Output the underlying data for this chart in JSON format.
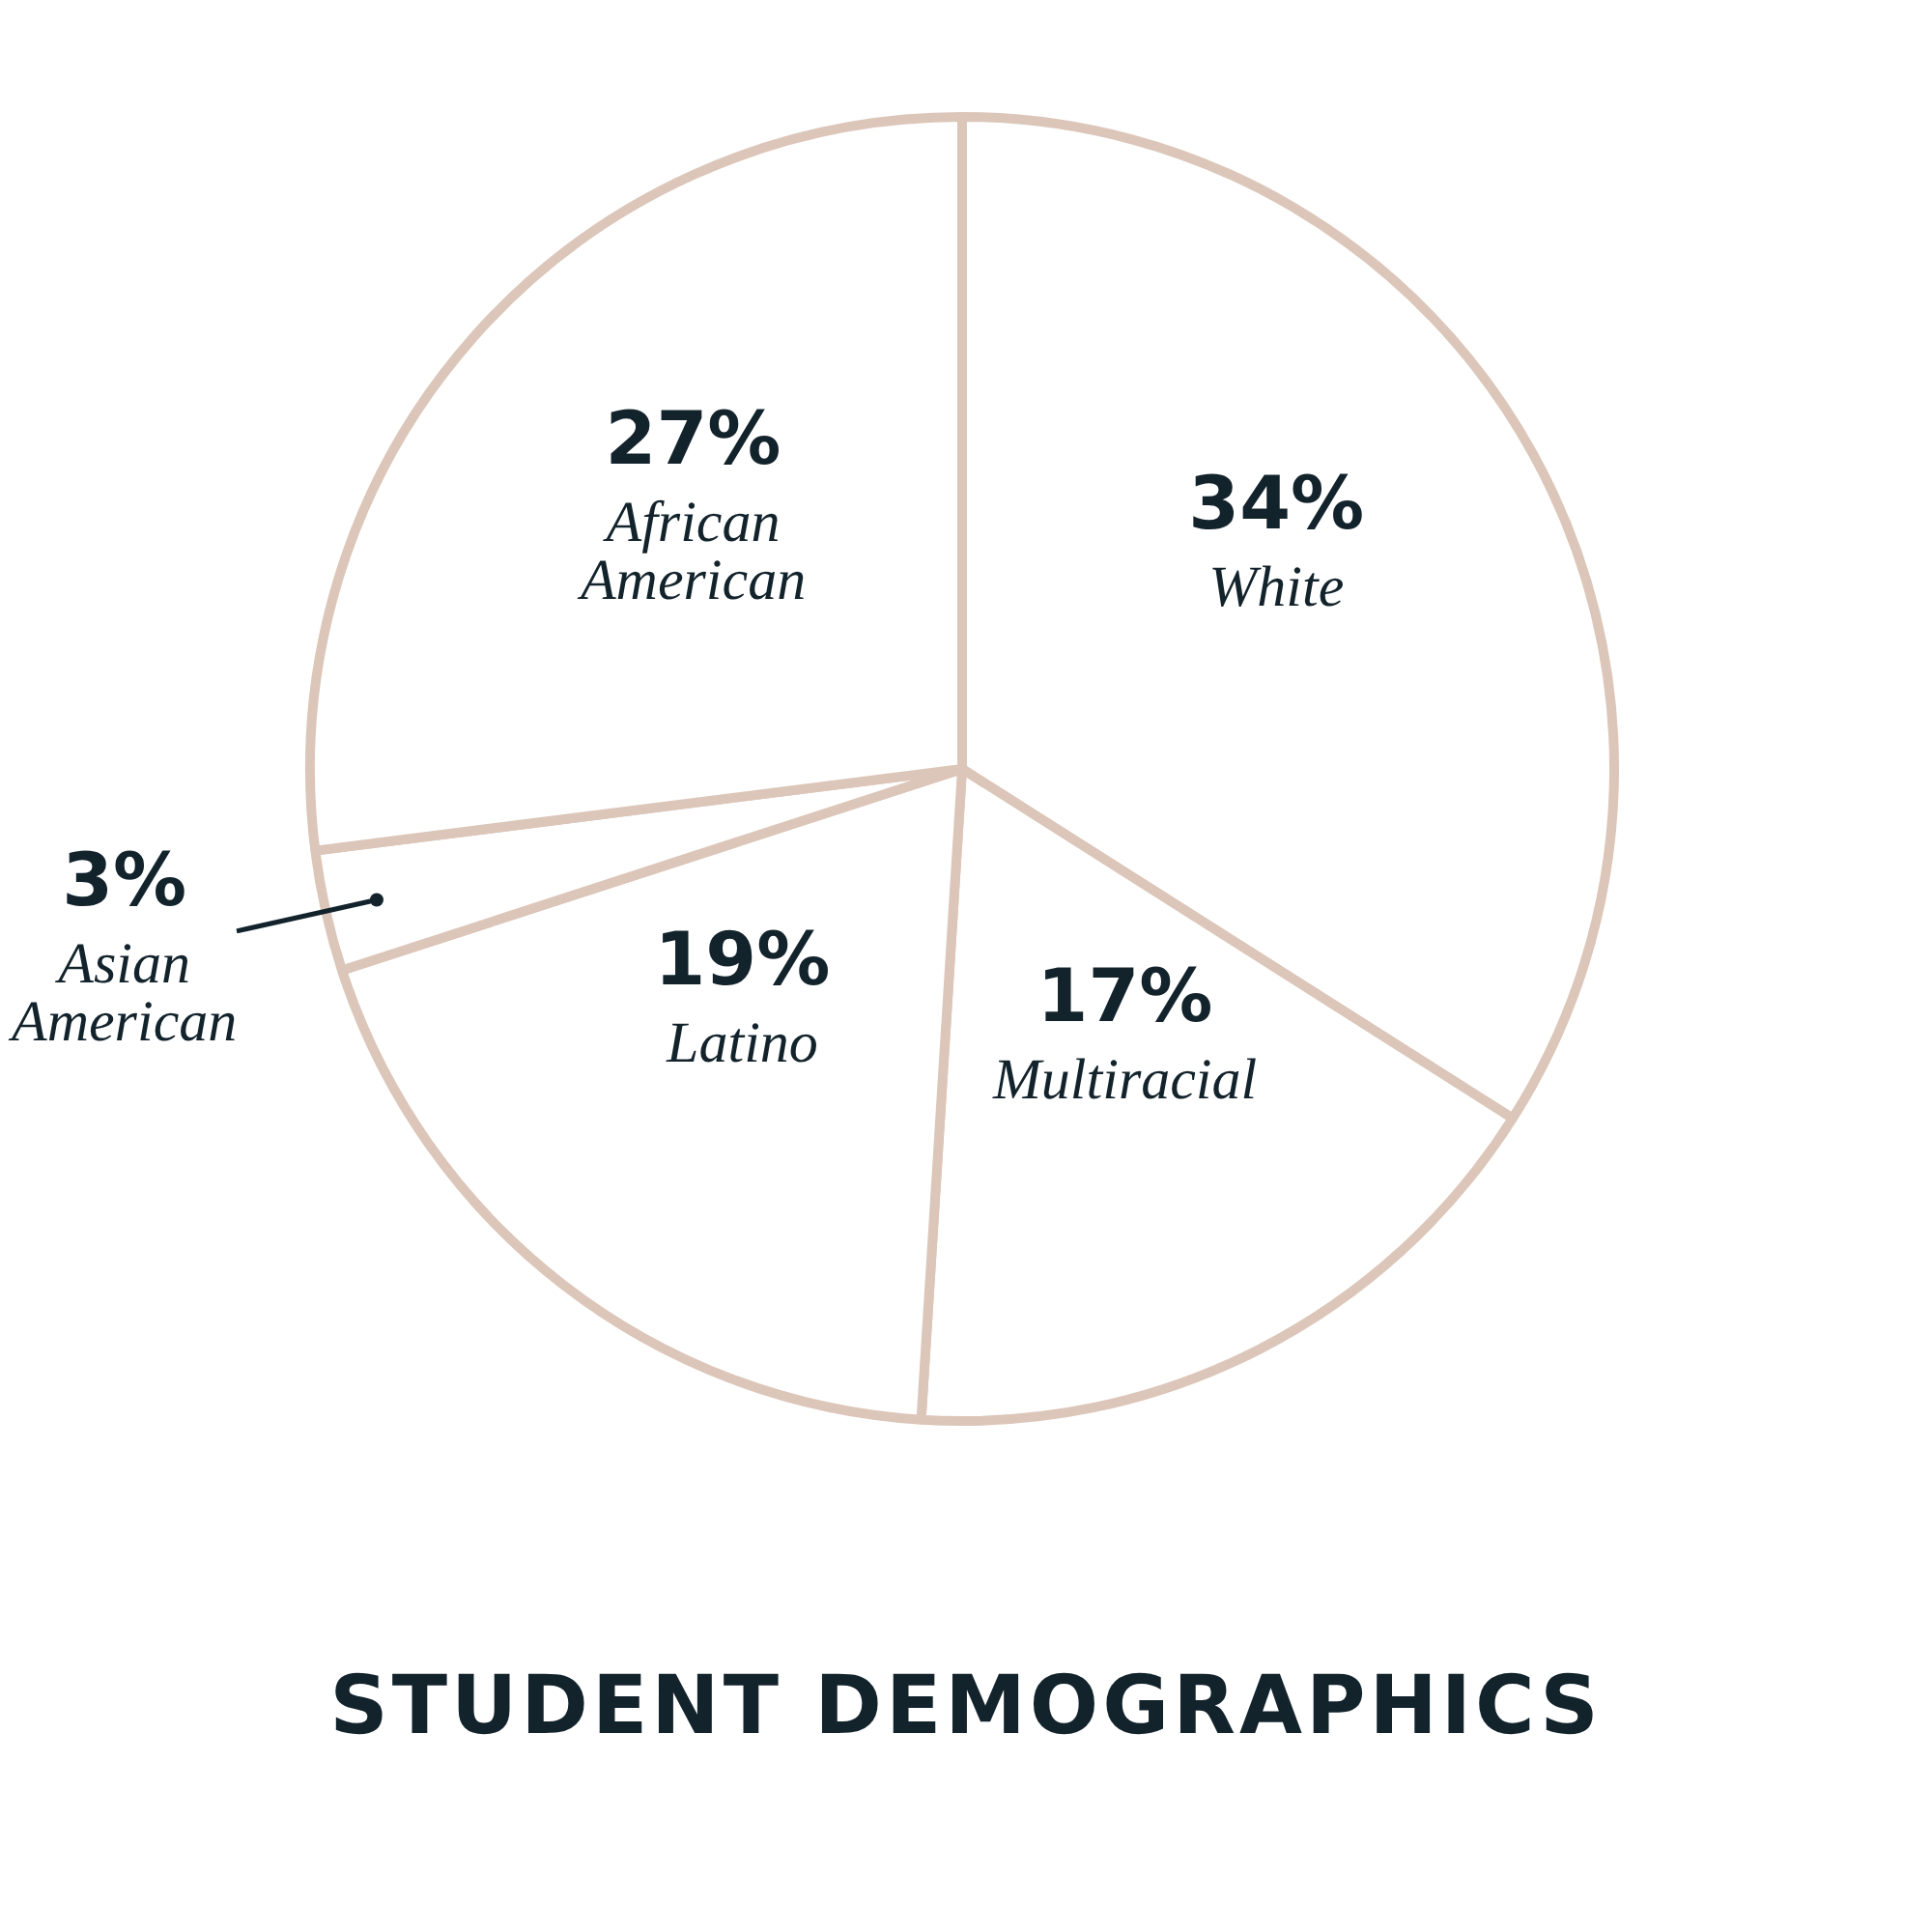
{
  "chart_data": {
    "type": "pie",
    "title": "STUDENT DEMOGRAPHICS",
    "categories": [
      "White",
      "Multiracial",
      "Latino",
      "Asian American",
      "African American"
    ],
    "values": [
      34,
      17,
      19,
      3,
      27
    ],
    "value_labels": [
      "34%",
      "17%",
      "19%",
      "3%",
      "27%"
    ],
    "colors": [
      "#ffffff",
      "#ffffff",
      "#ffffff",
      "#ffffff",
      "#ffffff"
    ],
    "legend": false
  }
}
